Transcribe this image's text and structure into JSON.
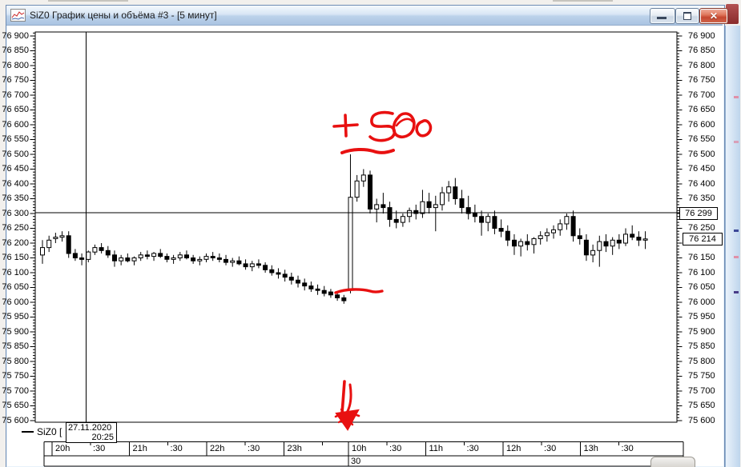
{
  "window": {
    "title": "SiZ0 График цены и объёма #3 - [5 минут]",
    "controls": {
      "minimize": "minimize",
      "restore": "restore",
      "close": "close"
    }
  },
  "price_axis": {
    "labels": [
      "76 900",
      "76 850",
      "76 800",
      "76 750",
      "76 700",
      "76 650",
      "76 600",
      "76 550",
      "76 500",
      "76 450",
      "76 400",
      "76 350",
      "76 300",
      "76 250",
      "76 200",
      "76 150",
      "76 100",
      "76 050",
      "76 000",
      "75 950",
      "75 900",
      "75 850",
      "75 800",
      "75 750",
      "75 700",
      "75 650",
      "75 600"
    ],
    "crosshair_price": "76 299",
    "last_price": "76 214"
  },
  "time_axis": {
    "stub": "",
    "hours": [
      {
        "label": "20h",
        "half": ":30"
      },
      {
        "label": "21h",
        "half": ":30"
      },
      {
        "label": "22h",
        "half": ":30"
      },
      {
        "label": "23h",
        "half": ""
      },
      {
        "label": "10h",
        "half": ":30"
      },
      {
        "label": "11h",
        "half": ":30"
      },
      {
        "label": "12h",
        "half": ":30"
      },
      {
        "label": "13h",
        "half": ":30"
      }
    ],
    "row2": "30"
  },
  "footer": {
    "legend": "SiZ0 [",
    "tooltip_date": "27.11.2020",
    "tooltip_time": "20:25"
  },
  "annotation": {
    "text": "+ 500",
    "color": "#e81010",
    "arrow_meaning": "down arrow at morning session open"
  },
  "chart_data": {
    "type": "candlestick",
    "title": "SiZ0 График цены и объёма #3 - [5 минут]",
    "symbol": "SiZ0",
    "timeframe": "5 минут",
    "ylim": [
      75600,
      76900
    ],
    "y_step": 50,
    "crosshair": {
      "date": "27.11.2020",
      "time": "20:25",
      "price": 76299
    },
    "last_price": 76214,
    "columns": [
      "time",
      "open",
      "high",
      "low",
      "close"
    ],
    "candles": [
      [
        "20:00",
        76160,
        76210,
        76130,
        76185
      ],
      [
        "20:05",
        76185,
        76225,
        76170,
        76210
      ],
      [
        "20:10",
        76215,
        76235,
        76200,
        76220
      ],
      [
        "20:15",
        76220,
        76240,
        76205,
        76225
      ],
      [
        "20:20",
        76225,
        76240,
        76150,
        76165
      ],
      [
        "20:25",
        76165,
        76180,
        76140,
        76150
      ],
      [
        "20:30",
        76150,
        76165,
        76125,
        76145
      ],
      [
        "20:35",
        76145,
        76175,
        76135,
        76170
      ],
      [
        "20:40",
        76170,
        76195,
        76160,
        76185
      ],
      [
        "20:45",
        76185,
        76200,
        76165,
        76175
      ],
      [
        "20:50",
        76175,
        76190,
        76150,
        76160
      ],
      [
        "20:55",
        76160,
        76175,
        76120,
        76140
      ],
      [
        "21:00",
        76140,
        76160,
        76125,
        76150
      ],
      [
        "21:05",
        76150,
        76165,
        76135,
        76140
      ],
      [
        "21:10",
        76140,
        76155,
        76125,
        76150
      ],
      [
        "21:15",
        76150,
        76170,
        76140,
        76160
      ],
      [
        "21:20",
        76160,
        76175,
        76145,
        76155
      ],
      [
        "21:25",
        76155,
        76170,
        76140,
        76165
      ],
      [
        "21:30",
        76165,
        76180,
        76150,
        76155
      ],
      [
        "21:35",
        76155,
        76165,
        76135,
        76145
      ],
      [
        "21:40",
        76145,
        76160,
        76130,
        76150
      ],
      [
        "21:45",
        76150,
        76170,
        76140,
        76160
      ],
      [
        "21:50",
        76160,
        76175,
        76145,
        76150
      ],
      [
        "21:55",
        76150,
        76160,
        76130,
        76140
      ],
      [
        "22:00",
        76140,
        76155,
        76125,
        76145
      ],
      [
        "22:05",
        76145,
        76165,
        76135,
        76155
      ],
      [
        "22:10",
        76155,
        76170,
        76140,
        76150
      ],
      [
        "22:15",
        76150,
        76165,
        76135,
        76145
      ],
      [
        "22:20",
        76145,
        76160,
        76125,
        76135
      ],
      [
        "22:25",
        76135,
        76150,
        76120,
        76140
      ],
      [
        "22:30",
        76140,
        76155,
        76125,
        76130
      ],
      [
        "22:35",
        76130,
        76145,
        76110,
        76120
      ],
      [
        "22:40",
        76120,
        76140,
        76105,
        76130
      ],
      [
        "22:45",
        76130,
        76145,
        76115,
        76125
      ],
      [
        "22:50",
        76125,
        76135,
        76100,
        76110
      ],
      [
        "22:55",
        76110,
        76125,
        76090,
        76100
      ],
      [
        "23:00",
        76100,
        76115,
        76080,
        76095
      ],
      [
        "23:05",
        76095,
        76110,
        76070,
        76085
      ],
      [
        "23:10",
        76085,
        76100,
        76060,
        76075
      ],
      [
        "23:15",
        76075,
        76090,
        76050,
        76065
      ],
      [
        "23:20",
        76065,
        76080,
        76040,
        76055
      ],
      [
        "23:25",
        76055,
        76070,
        76035,
        76045
      ],
      [
        "23:30",
        76045,
        76060,
        76025,
        76040
      ],
      [
        "23:35",
        76040,
        76055,
        76020,
        76030
      ],
      [
        "23:40",
        76035,
        76045,
        76015,
        76025
      ],
      [
        "23:45",
        76025,
        76035,
        76005,
        76015
      ],
      [
        "23:50",
        76015,
        76025,
        75995,
        76005
      ],
      [
        "10:00",
        76045,
        76500,
        76030,
        76355
      ],
      [
        "10:05",
        76355,
        76430,
        76340,
        76410
      ],
      [
        "10:10",
        76410,
        76450,
        76390,
        76430
      ],
      [
        "10:15",
        76430,
        76445,
        76300,
        76315
      ],
      [
        "10:20",
        76315,
        76350,
        76270,
        76330
      ],
      [
        "10:25",
        76330,
        76370,
        76300,
        76320
      ],
      [
        "10:30",
        76320,
        76340,
        76255,
        76280
      ],
      [
        "10:35",
        76280,
        76310,
        76250,
        76270
      ],
      [
        "10:40",
        76270,
        76300,
        76255,
        76290
      ],
      [
        "10:45",
        76290,
        76320,
        76270,
        76310
      ],
      [
        "10:50",
        76310,
        76330,
        76280,
        76300
      ],
      [
        "10:55",
        76300,
        76380,
        76285,
        76340
      ],
      [
        "11:00",
        76340,
        76370,
        76300,
        76320
      ],
      [
        "11:05",
        76320,
        76360,
        76240,
        76330
      ],
      [
        "11:10",
        76330,
        76390,
        76310,
        76370
      ],
      [
        "11:15",
        76370,
        76410,
        76340,
        76390
      ],
      [
        "11:20",
        76390,
        76420,
        76330,
        76350
      ],
      [
        "11:25",
        76350,
        76380,
        76300,
        76320
      ],
      [
        "11:30",
        76320,
        76360,
        76280,
        76300
      ],
      [
        "11:35",
        76300,
        76330,
        76270,
        76290
      ],
      [
        "11:40",
        76290,
        76310,
        76225,
        76270
      ],
      [
        "11:45",
        76270,
        76300,
        76240,
        76290
      ],
      [
        "11:50",
        76290,
        76310,
        76230,
        76250
      ],
      [
        "11:55",
        76250,
        76280,
        76220,
        76240
      ],
      [
        "12:00",
        76240,
        76260,
        76190,
        76210
      ],
      [
        "12:05",
        76210,
        76230,
        76160,
        76190
      ],
      [
        "12:10",
        76190,
        76215,
        76155,
        76205
      ],
      [
        "12:15",
        76205,
        76230,
        76175,
        76195
      ],
      [
        "12:20",
        76195,
        76220,
        76165,
        76215
      ],
      [
        "12:25",
        76215,
        76240,
        76195,
        76225
      ],
      [
        "12:30",
        76225,
        76250,
        76205,
        76235
      ],
      [
        "12:35",
        76235,
        76260,
        76215,
        76245
      ],
      [
        "12:40",
        76245,
        76280,
        76225,
        76265
      ],
      [
        "12:45",
        76265,
        76300,
        76245,
        76290
      ],
      [
        "12:50",
        76290,
        76310,
        76205,
        76225
      ],
      [
        "12:55",
        76225,
        76250,
        76195,
        76215
      ],
      [
        "13:00",
        76210,
        76230,
        76140,
        76160
      ],
      [
        "13:05",
        76160,
        76195,
        76135,
        76175
      ],
      [
        "13:10",
        76175,
        76225,
        76120,
        76205
      ],
      [
        "13:15",
        76205,
        76230,
        76170,
        76190
      ],
      [
        "13:20",
        76190,
        76220,
        76160,
        76210
      ],
      [
        "13:25",
        76210,
        76230,
        76180,
        76200
      ],
      [
        "13:30",
        76200,
        76250,
        76190,
        76230
      ],
      [
        "13:35",
        76230,
        76260,
        76210,
        76220
      ],
      [
        "13:40",
        76220,
        76240,
        76190,
        76210
      ],
      [
        "13:45",
        76210,
        76240,
        76180,
        76214
      ]
    ]
  }
}
